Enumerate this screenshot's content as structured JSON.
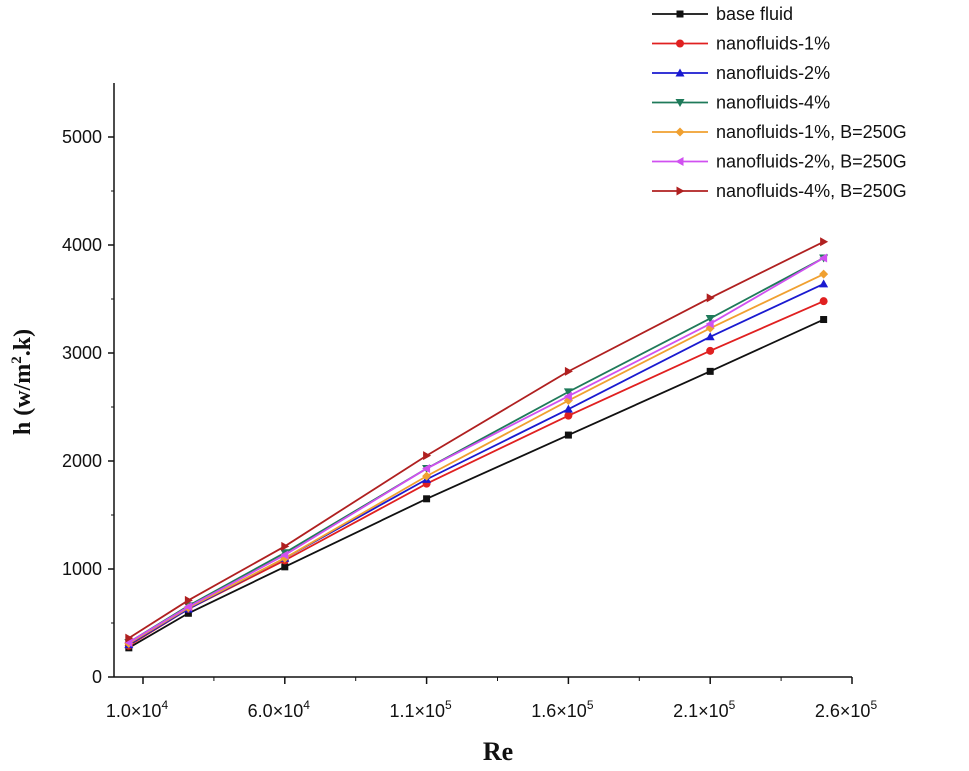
{
  "chart_data": {
    "type": "line",
    "title": "",
    "xlabel": "Re",
    "ylabel_main": "h (w/m",
    "ylabel_sup": "2",
    "ylabel_end": ".k)",
    "xlim": [
      0,
      260000
    ],
    "ylim": [
      0,
      5500
    ],
    "x_ticks": [
      {
        "value": 10000,
        "label": "1.0×10",
        "exp": "4"
      },
      {
        "value": 60000,
        "label": "6.0×10",
        "exp": "4"
      },
      {
        "value": 110000,
        "label": "1.1×10",
        "exp": "5"
      },
      {
        "value": 160000,
        "label": "1.6×10",
        "exp": "5"
      },
      {
        "value": 210000,
        "label": "2.1×10",
        "exp": "5"
      },
      {
        "value": 260000,
        "label": "2.6×10",
        "exp": "5"
      }
    ],
    "y_ticks": [
      {
        "value": 0,
        "label": "0"
      },
      {
        "value": 1000,
        "label": "1000"
      },
      {
        "value": 2000,
        "label": "2000"
      },
      {
        "value": 3000,
        "label": "3000"
      },
      {
        "value": 4000,
        "label": "4000"
      },
      {
        "value": 5000,
        "label": "5000"
      }
    ],
    "legend_position": "top-right",
    "series": [
      {
        "name": "base fluid",
        "color": "#111111",
        "marker": "square",
        "x": [
          5000,
          26000,
          60000,
          110000,
          160000,
          210000,
          250000
        ],
        "y": [
          270,
          590,
          1020,
          1650,
          2240,
          2830,
          3310
        ]
      },
      {
        "name": "nanofluids-1%",
        "color": "#e02020",
        "marker": "circle",
        "x": [
          5000,
          26000,
          60000,
          110000,
          160000,
          210000,
          250000
        ],
        "y": [
          290,
          630,
          1080,
          1790,
          2420,
          3020,
          3480
        ]
      },
      {
        "name": "nanofluids-2%",
        "color": "#1a1ad0",
        "marker": "triangle-up",
        "x": [
          5000,
          26000,
          60000,
          110000,
          160000,
          210000,
          250000
        ],
        "y": [
          300,
          630,
          1100,
          1830,
          2480,
          3150,
          3640
        ]
      },
      {
        "name": "nanofluids-4%",
        "color": "#1f7a5a",
        "marker": "triangle-down",
        "x": [
          5000,
          26000,
          60000,
          110000,
          160000,
          210000,
          250000
        ],
        "y": [
          320,
          660,
          1150,
          1930,
          2640,
          3320,
          3880
        ]
      },
      {
        "name": "nanofluids-1%, B=250G",
        "color": "#f0a030",
        "marker": "diamond",
        "x": [
          5000,
          26000,
          60000,
          110000,
          160000,
          210000,
          250000
        ],
        "y": [
          310,
          640,
          1100,
          1860,
          2560,
          3230,
          3730
        ]
      },
      {
        "name": "nanofluids-2%, B=250G",
        "color": "#d050f0",
        "marker": "triangle-left",
        "x": [
          5000,
          26000,
          60000,
          110000,
          160000,
          210000,
          250000
        ],
        "y": [
          320,
          650,
          1130,
          1930,
          2600,
          3270,
          3880
        ]
      },
      {
        "name": "nanofluids-4%, B=250G",
        "color": "#b02020",
        "marker": "triangle-right",
        "x": [
          5000,
          26000,
          60000,
          110000,
          160000,
          210000,
          250000
        ],
        "y": [
          360,
          710,
          1210,
          2050,
          2830,
          3510,
          4030
        ]
      }
    ]
  }
}
